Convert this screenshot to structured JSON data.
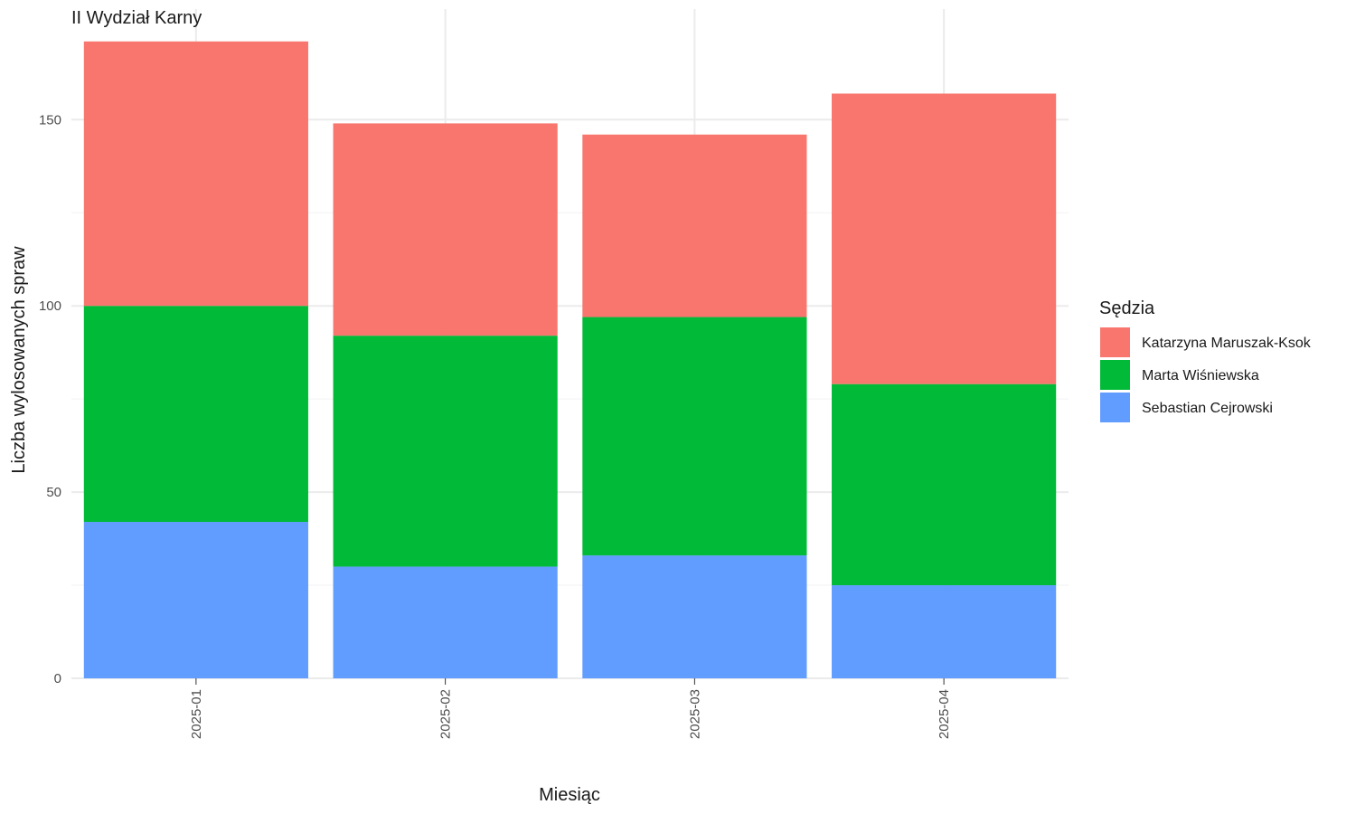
{
  "chart_data": {
    "type": "bar",
    "stacked": true,
    "title": "II Wydział Karny",
    "xlabel": "Miesiąc",
    "ylabel": "Liczba wylosowanych spraw",
    "categories": [
      "2025-01",
      "2025-02",
      "2025-03",
      "2025-04"
    ],
    "series": [
      {
        "name": "Sebastian Cejrowski",
        "color": "#619CFF",
        "values": [
          42,
          30,
          33,
          25
        ]
      },
      {
        "name": "Marta Wiśniewska",
        "color": "#00BA38",
        "values": [
          58,
          62,
          64,
          54
        ]
      },
      {
        "name": "Katarzyna Maruszak-Ksok",
        "color": "#F8766D",
        "values": [
          71,
          57,
          49,
          78
        ]
      }
    ],
    "ylim": [
      0,
      171
    ],
    "yticks": [
      0,
      50,
      100,
      150
    ],
    "grid": true,
    "legend": {
      "title": "Sędzia",
      "position": "right",
      "order": [
        "Katarzyna Maruszak-Ksok",
        "Marta Wiśniewska",
        "Sebastian Cejrowski"
      ]
    }
  }
}
